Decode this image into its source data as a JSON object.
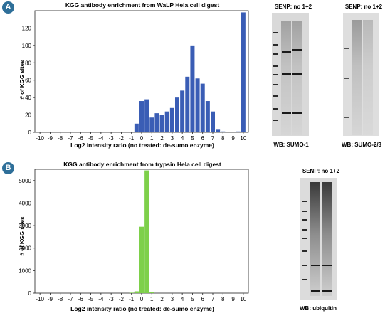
{
  "panels": [
    {
      "badge": "A",
      "title": "KGG antibody enrichment from WaLP Hela cell digest",
      "ylabel": "# of KGG sites",
      "xlabel": "Log2 intensity ratio (no treated: de-sumo enzyme)",
      "blots": [
        {
          "header": "SENP: no  1+2",
          "caption": "WB: SUMO-1"
        },
        {
          "header": "SENP: no  1+2",
          "caption": "WB: SUMO-2/3"
        }
      ]
    },
    {
      "badge": "B",
      "title": "KGG antibody enrichment from trypsin Hela cell digest",
      "ylabel": "# of KGG sites",
      "xlabel": "Log2 intensity ratio (no treated: de-sumo enzyme)",
      "blots": [
        {
          "header": "SENP: no  1+2",
          "caption": "WB: ubiquitin"
        }
      ]
    }
  ],
  "colors": {
    "badge": "#2e6f99",
    "divider": "#6f9aa8",
    "bar_a": "#3a5db5",
    "bar_b": "#7ed04a",
    "blot_bg": "#dcdcdc",
    "band": "#1a1a1a"
  },
  "chart_data": [
    {
      "type": "bar",
      "title": "KGG antibody enrichment from WaLP Hela cell digest",
      "xlabel": "Log2 intensity ratio (no treated: de-sumo enzyme)",
      "ylabel": "# of KGG sites",
      "ylim": [
        0,
        140
      ],
      "y_ticks": [
        0,
        20,
        40,
        60,
        80,
        100,
        120
      ],
      "x_ticks": [
        -10,
        -9,
        -8,
        -7,
        -6,
        -5,
        -4,
        -3,
        -2,
        -1,
        0,
        1,
        2,
        3,
        4,
        5,
        6,
        7,
        8,
        9,
        10
      ],
      "grid": false,
      "x": [
        -0.5,
        0,
        0.5,
        1,
        1.5,
        2,
        2.5,
        3,
        3.5,
        4,
        4.5,
        5,
        5.5,
        6,
        6.5,
        7,
        7.5,
        8,
        8.5,
        9,
        9.5,
        10
      ],
      "values": [
        10,
        36,
        38,
        17,
        22,
        20,
        24,
        28,
        40,
        48,
        64,
        100,
        62,
        56,
        36,
        24,
        3,
        1,
        0,
        0,
        1,
        138
      ]
    },
    {
      "type": "bar",
      "title": "KGG antibody enrichment from trypsin Hela cell digest",
      "xlabel": "Log2 intensity ratio (no treated: de-sumo enzyme)",
      "ylabel": "# of KGG sites",
      "ylim": [
        0,
        5500
      ],
      "y_ticks": [
        0,
        1000,
        2000,
        3000,
        4000,
        5000
      ],
      "x_ticks": [
        -10,
        -9,
        -8,
        -7,
        -6,
        -5,
        -4,
        -3,
        -2,
        -1,
        0,
        1,
        2,
        3,
        4,
        5,
        6,
        7,
        8,
        9,
        10
      ],
      "grid": false,
      "x": [
        -1,
        -0.5,
        0,
        0.5,
        1
      ],
      "values": [
        20,
        80,
        2950,
        5450,
        60
      ]
    }
  ]
}
